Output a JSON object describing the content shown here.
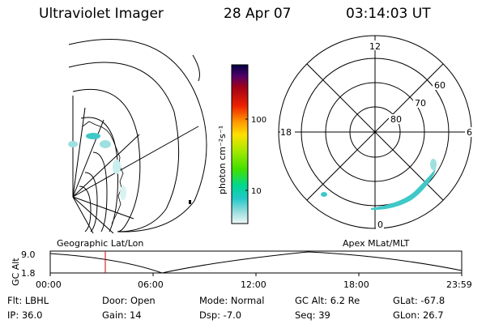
{
  "header": {
    "title": "Ultraviolet Imager",
    "date": "28 Apr 07",
    "time": "03:14:03 UT"
  },
  "colorbar": {
    "unit_label": "photon cm⁻²s⁻¹",
    "ticks": [
      "100",
      "10"
    ],
    "colors": [
      "#000040",
      "#2a0050",
      "#50006a",
      "#7a004a",
      "#a00018",
      "#cc0000",
      "#ee2200",
      "#ff6600",
      "#ffa500",
      "#ffe000",
      "#e8f000",
      "#a8e800",
      "#40e000",
      "#00d890",
      "#20c8c8",
      "#90dcdc",
      "#e0f4f4"
    ]
  },
  "left_map": {
    "label": "Geographic Lat/Lon"
  },
  "right_map": {
    "label": "Apex  MLat/MLT",
    "mlt_labels": [
      "12",
      "18",
      "6",
      "0"
    ],
    "lat_labels": [
      "60",
      "70",
      "80"
    ]
  },
  "timeline": {
    "ylabel": "GC Alt",
    "yticks": [
      "9.0",
      "1.8"
    ],
    "xticks": [
      "00:00",
      "06:00",
      "12:00",
      "18:00",
      "23:59"
    ],
    "marker_color": "#cc0000"
  },
  "status": {
    "flt": "Flt: LBHL",
    "ip": "IP: 36.0",
    "door": "Door: Open",
    "gain": "Gain: 14",
    "mode": "Mode: Normal",
    "dsp": "Dsp:    -7.0",
    "gcalt": "GC Alt: 6.2 Re",
    "seq": "Seq: 39",
    "glat": "GLat:  -67.8",
    "glon": "GLon:   26.7"
  }
}
